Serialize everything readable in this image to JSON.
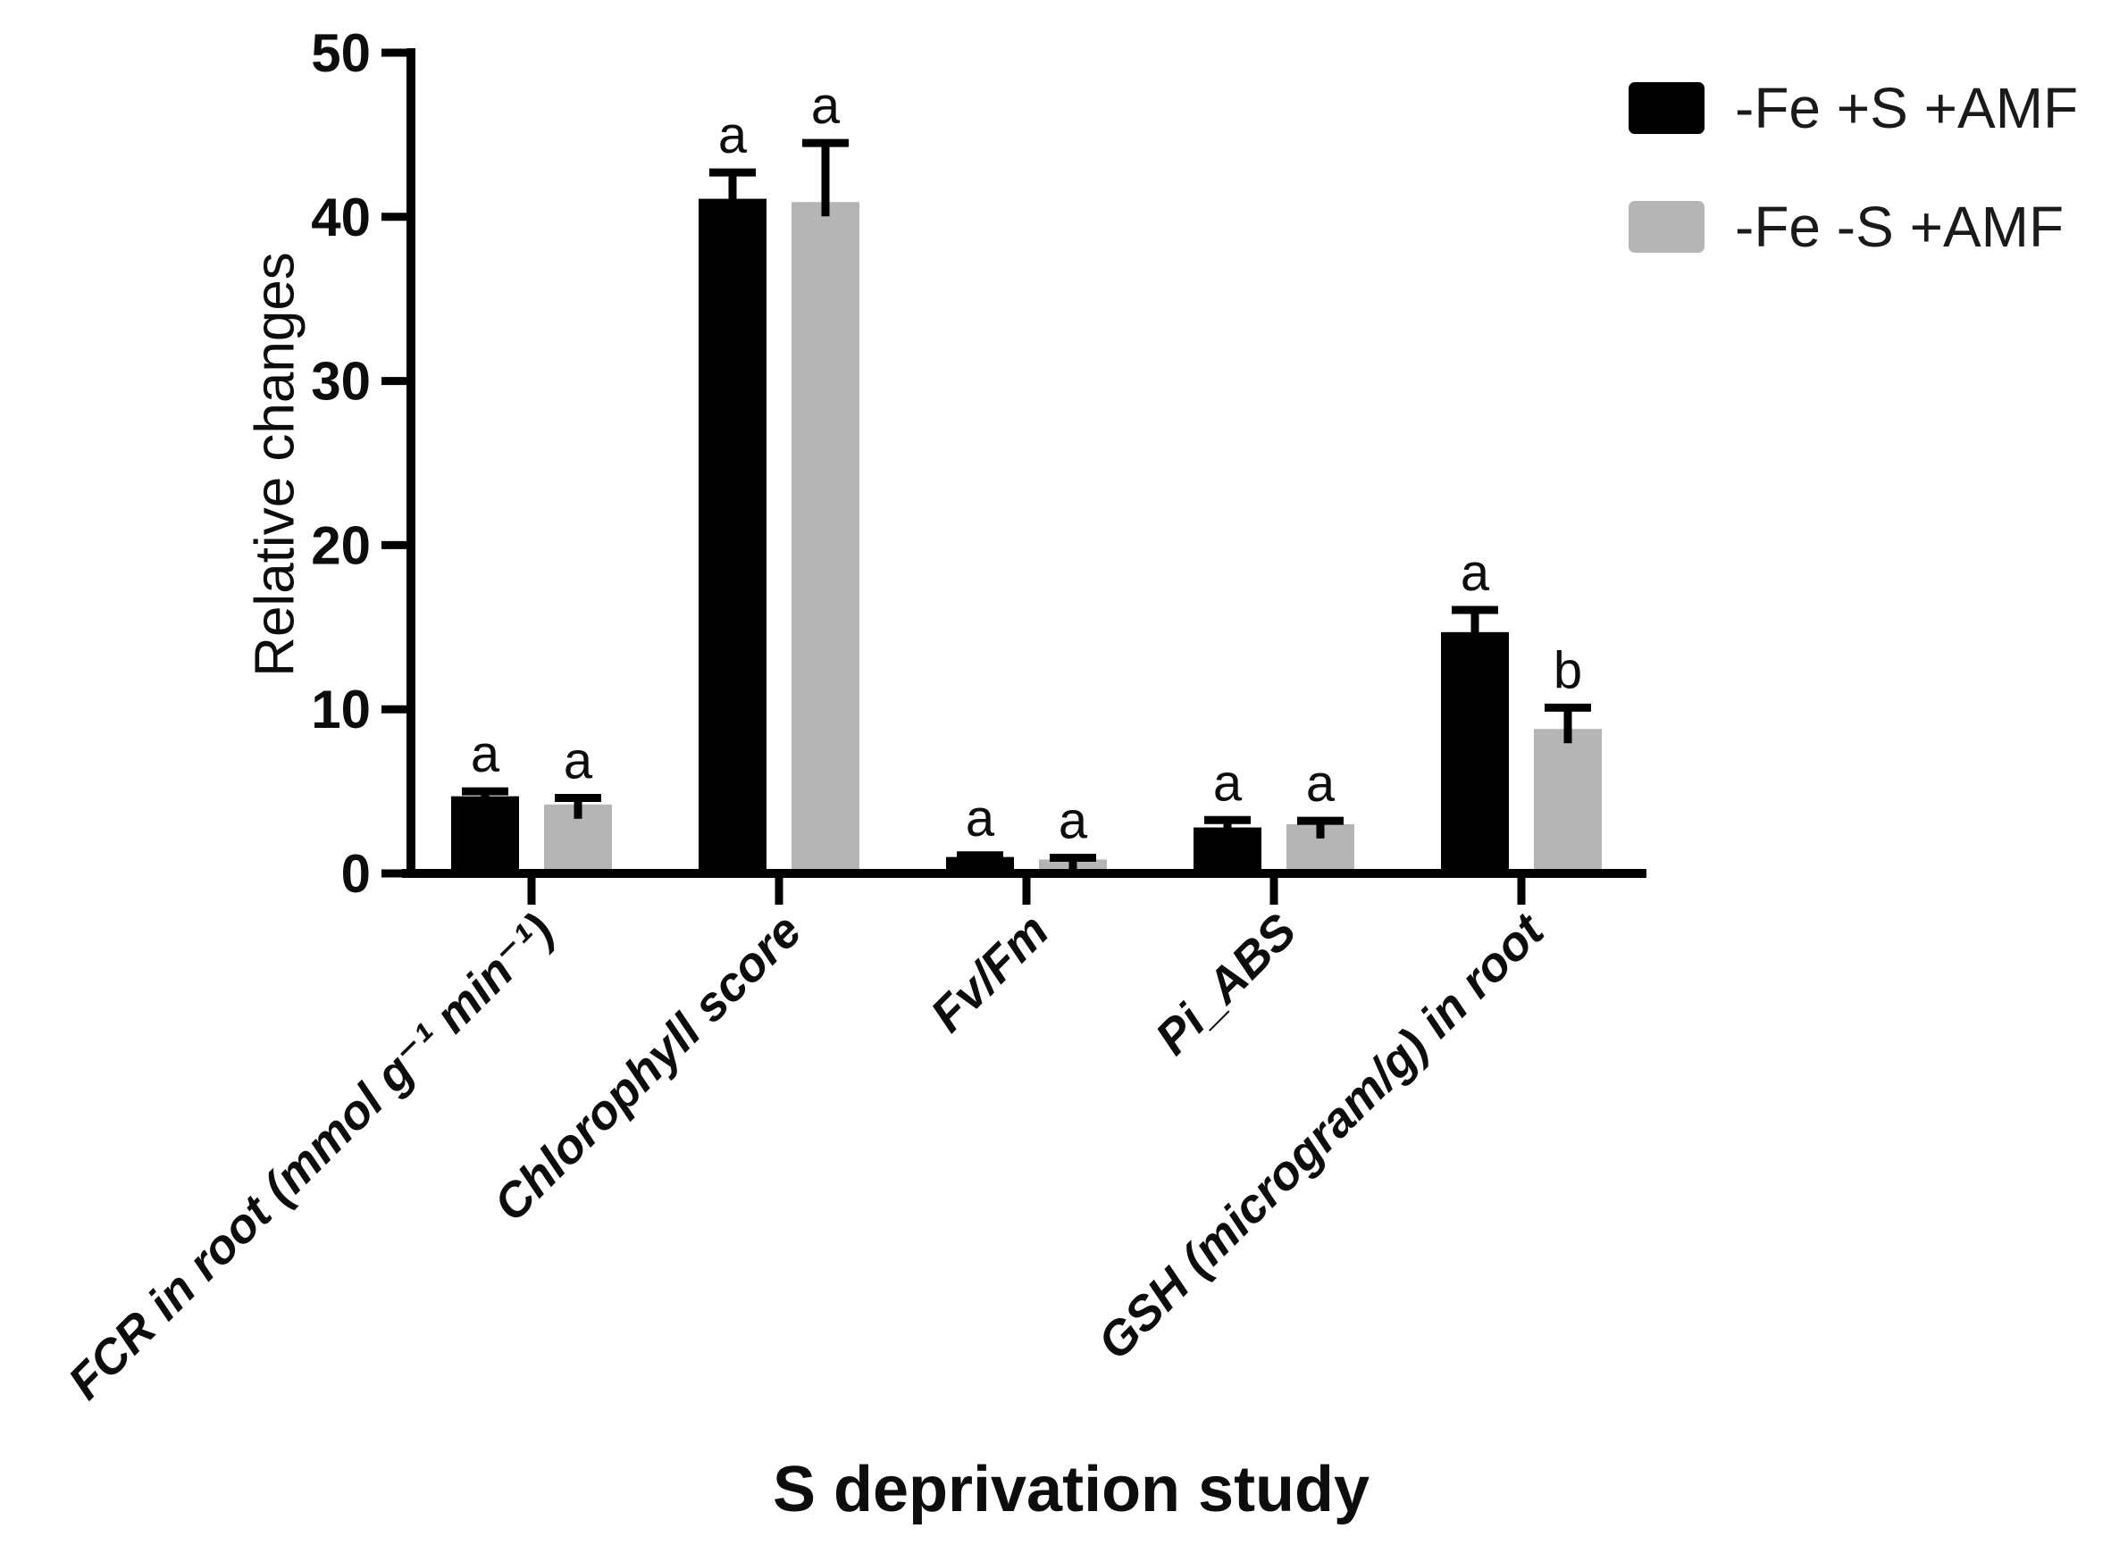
{
  "figure": {
    "background": "#ffffff"
  },
  "chart_data": {
    "type": "bar",
    "title": "",
    "xlabel": "S deprivation study",
    "ylabel": "Relative changes",
    "ylim": [
      0,
      50
    ],
    "yticks": [
      0,
      10,
      20,
      30,
      40,
      50
    ],
    "grid": false,
    "legend_position": "top-right",
    "bar_color_black": "#000000",
    "bar_color_gray": "#b5b5b5",
    "categories": [
      "FCR in root (mmol g⁻¹ min⁻¹)",
      "Chlorophyll score",
      "Fv/Fm",
      "Pi_ABS",
      "GSH (microgram/g) in root"
    ],
    "series": [
      {
        "name": "-Fe +S +AMF",
        "color": "#000000",
        "values": [
          4.7,
          41.1,
          1.0,
          2.8,
          14.7
        ],
        "errors": [
          0.3,
          1.6,
          0.1,
          0.45,
          1.35
        ],
        "sig_letters": [
          "a",
          "a",
          "a",
          "a",
          "a"
        ]
      },
      {
        "name": "-Fe -S +AMF",
        "color": "#b5b5b5",
        "values": [
          4.2,
          40.9,
          0.85,
          3.0,
          8.8
        ],
        "errors": [
          0.4,
          3.6,
          0.1,
          0.2,
          1.3
        ],
        "sig_letters": [
          "a",
          "a",
          "a",
          "a",
          "b"
        ]
      }
    ]
  }
}
